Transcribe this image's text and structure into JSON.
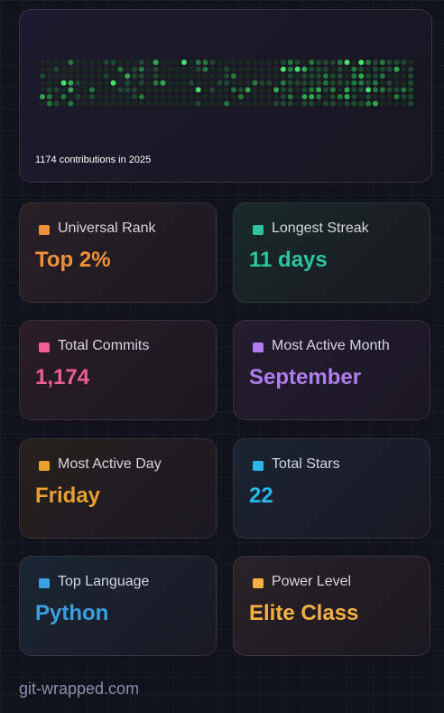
{
  "heatmap": {
    "caption": "1174 contributions in 2025"
  },
  "stats": [
    {
      "label": "Universal Rank",
      "value": "Top 2%"
    },
    {
      "label": "Longest Streak",
      "value": "11 days"
    },
    {
      "label": "Total Commits",
      "value": "1,174"
    },
    {
      "label": "Most Active Month",
      "value": "September"
    },
    {
      "label": "Most Active Day",
      "value": "Friday"
    },
    {
      "label": "Total Stars",
      "value": "22"
    },
    {
      "label": "Top Language",
      "value": "Python"
    },
    {
      "label": "Power Level",
      "value": "Elite Class"
    }
  ],
  "footer": "git-wrapped.com"
}
